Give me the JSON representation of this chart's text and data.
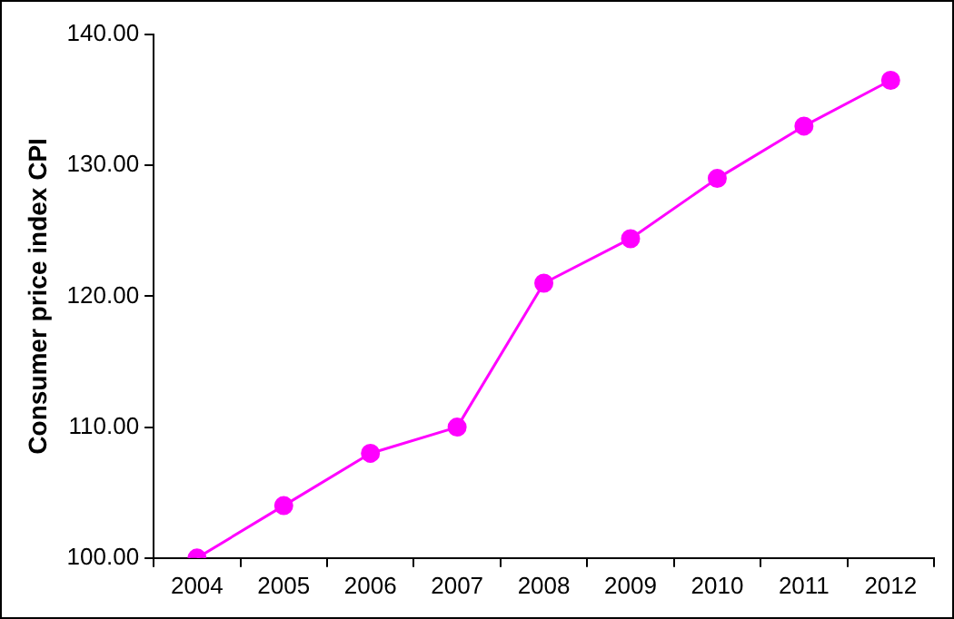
{
  "chart_data": {
    "type": "line",
    "ylabel": "Consumer price index CPI",
    "categories": [
      "2004",
      "2005",
      "2006",
      "2007",
      "2008",
      "2009",
      "2010",
      "2011",
      "2012"
    ],
    "series": [
      {
        "color": "#ff00ff",
        "values": [
          100,
          104,
          108,
          110,
          121,
          124.4,
          129,
          133,
          136.5
        ]
      }
    ],
    "ylim": [
      100,
      140
    ],
    "yticks": [
      {
        "value": 100,
        "label": "100.00"
      },
      {
        "value": 110,
        "label": "110.00"
      },
      {
        "value": 120,
        "label": "120.00"
      },
      {
        "value": 130,
        "label": "130.00"
      },
      {
        "value": 140,
        "label": "140.00"
      }
    ],
    "grid": false,
    "legend": false,
    "marker": "circle",
    "line_style": "solid"
  }
}
